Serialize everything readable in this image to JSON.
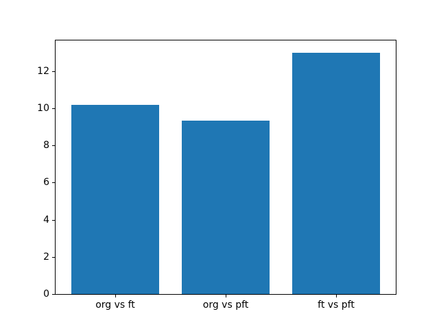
{
  "figure": {
    "background": "#ffffff",
    "spine_color": "#000000",
    "text_color": "#000000"
  },
  "chart_data": {
    "type": "bar",
    "title": "",
    "xlabel": "",
    "ylabel": "",
    "categories": [
      "org vs ft",
      "org vs pft",
      "ft vs pft"
    ],
    "values": [
      10.2,
      9.35,
      13.0
    ],
    "bar_color": "#1f77b4",
    "bar_width": 0.8,
    "ylim": [
      0,
      13.65
    ],
    "yticks": [
      0,
      2,
      4,
      6,
      8,
      10,
      12
    ],
    "grid": false,
    "legend": false
  }
}
